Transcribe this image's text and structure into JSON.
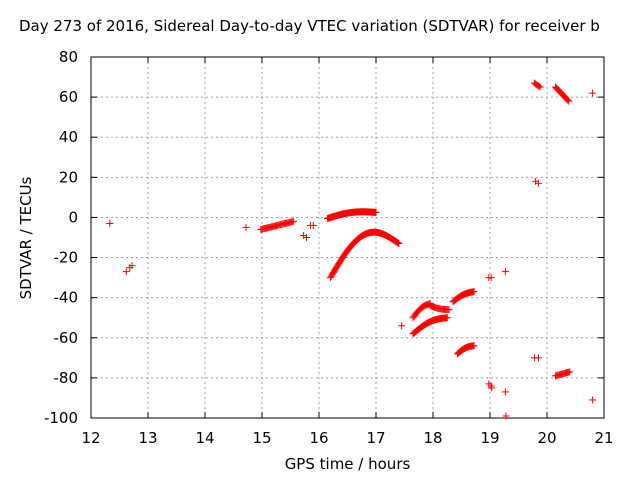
{
  "chart_data": {
    "type": "scatter",
    "title": "Day 273 of 2016, Sidereal Day-to-day VTEC variation (SDTVAR) for receiver b",
    "xlabel": "GPS time / hours",
    "ylabel": "SDTVAR / TECUs",
    "xlim": [
      12,
      21
    ],
    "ylim": [
      -100,
      80
    ],
    "xticks": [
      "12",
      "13",
      "14",
      "15",
      "16",
      "17",
      "18",
      "19",
      "20",
      "21"
    ],
    "yticks": [
      "-100",
      "-80",
      "-60",
      "-40",
      "-20",
      "0",
      "20",
      "40",
      "60",
      "80"
    ],
    "grid": true,
    "marker": "plus",
    "color": "#ff0000",
    "points": [
      [
        12.33,
        -3
      ],
      [
        12.62,
        -27
      ],
      [
        12.68,
        -25
      ],
      [
        12.72,
        -24
      ],
      [
        14.72,
        -5
      ],
      [
        15.73,
        -9
      ],
      [
        15.78,
        -10
      ],
      [
        15.85,
        -4
      ],
      [
        15.9,
        -4
      ],
      [
        17.45,
        -54
      ],
      [
        18.98,
        -30
      ],
      [
        19.02,
        -30
      ],
      [
        18.98,
        -83
      ],
      [
        19.02,
        -84
      ],
      [
        19.03,
        -85
      ],
      [
        19.27,
        -27
      ],
      [
        19.27,
        -87
      ],
      [
        19.28,
        -99
      ],
      [
        19.78,
        -70
      ],
      [
        19.85,
        -70
      ],
      [
        19.8,
        18
      ],
      [
        19.85,
        17
      ],
      [
        20.8,
        62
      ],
      [
        20.8,
        -91
      ]
    ],
    "tracks": [
      {
        "x0": 14.98,
        "x1": 15.55,
        "y0": -6,
        "y1": -2,
        "curve": 0,
        "n": 30
      },
      {
        "x0": 16.15,
        "x1": 17.0,
        "y0": -0.5,
        "y1": 2.5,
        "curve": 1.5,
        "n": 70
      },
      {
        "x0": 16.2,
        "x1": 17.4,
        "y0": -30,
        "y1": -13,
        "curve": 13,
        "n": 90
      },
      {
        "x0": 17.65,
        "x1": 18.25,
        "y0": -58,
        "y1": -50,
        "curve": 2,
        "n": 40
      },
      {
        "x0": 17.65,
        "x1": 17.95,
        "y0": -50,
        "y1": -43,
        "curve": 1.5,
        "n": 18
      },
      {
        "x0": 17.95,
        "x1": 18.28,
        "y0": -44,
        "y1": -46,
        "curve": -0.5,
        "n": 18
      },
      {
        "x0": 18.35,
        "x1": 18.72,
        "y0": -42,
        "y1": -37,
        "curve": 1,
        "n": 22
      },
      {
        "x0": 18.43,
        "x1": 18.72,
        "y0": -68,
        "y1": -64,
        "curve": 1,
        "n": 20
      },
      {
        "x0": 19.78,
        "x1": 19.88,
        "y0": 67,
        "y1": 65,
        "curve": 0,
        "n": 6
      },
      {
        "x0": 20.15,
        "x1": 20.38,
        "y0": 65,
        "y1": 58,
        "curve": 0,
        "n": 16
      },
      {
        "x0": 20.15,
        "x1": 20.4,
        "y0": -79,
        "y1": -77,
        "curve": 0,
        "n": 14
      }
    ]
  }
}
